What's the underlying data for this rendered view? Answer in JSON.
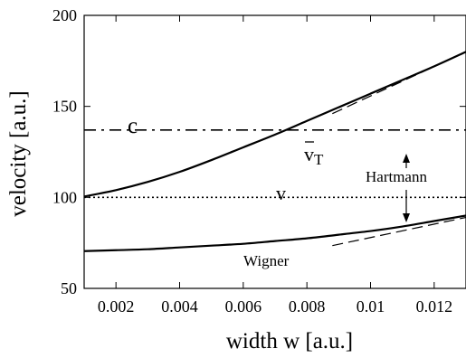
{
  "chart_data": {
    "type": "line",
    "xlabel": "width w [a.u.]",
    "ylabel": "velocity [a.u.]",
    "xlim": [
      0.001,
      0.013
    ],
    "ylim": [
      50,
      200
    ],
    "xticks": [
      0.002,
      0.004,
      0.006,
      0.008,
      0.01,
      0.012
    ],
    "xtick_labels": [
      "0.002",
      "0.004",
      "0.006",
      "0.008",
      "0.01",
      "0.012"
    ],
    "yticks": [
      50,
      100,
      150,
      200
    ],
    "ytick_labels": [
      "50",
      "100",
      "150",
      "200"
    ],
    "grid": false,
    "series": [
      {
        "name": "v̄T",
        "style": "solid",
        "x": [
          0.001,
          0.002,
          0.003,
          0.004,
          0.005,
          0.006,
          0.007,
          0.008,
          0.009,
          0.01,
          0.011,
          0.012,
          0.013
        ],
        "y": [
          100.5,
          104,
          108.5,
          114,
          120.5,
          127.5,
          134.5,
          142,
          149.5,
          157,
          164.5,
          172,
          180
        ]
      },
      {
        "name": "c",
        "style": "dash-dot",
        "x": [
          0.001,
          0.013
        ],
        "y": [
          137,
          137
        ]
      },
      {
        "name": "v",
        "style": "dotted",
        "x": [
          0.001,
          0.013
        ],
        "y": [
          100,
          100
        ]
      },
      {
        "name": "Wigner",
        "style": "solid",
        "x": [
          0.001,
          0.002,
          0.003,
          0.004,
          0.005,
          0.006,
          0.007,
          0.008,
          0.009,
          0.01,
          0.011,
          0.012,
          0.013
        ],
        "y": [
          70.5,
          71,
          71.5,
          72.5,
          73.5,
          74.5,
          76,
          77.5,
          79.5,
          81.5,
          84,
          87,
          90
        ]
      },
      {
        "name": "Hartmann (upper)",
        "style": "dashed",
        "x": [
          0.0088,
          0.013
        ],
        "y": [
          146,
          180
        ]
      },
      {
        "name": "Hartmann (lower)",
        "style": "dashed",
        "x": [
          0.0088,
          0.013
        ],
        "y": [
          73.5,
          89
        ]
      }
    ],
    "annotations": {
      "vt_label": "v",
      "vt_subscript": "T",
      "c_label": "c",
      "v_label": "v",
      "hartmann_label": "Hartmann",
      "wigner_label": "Wigner"
    }
  }
}
